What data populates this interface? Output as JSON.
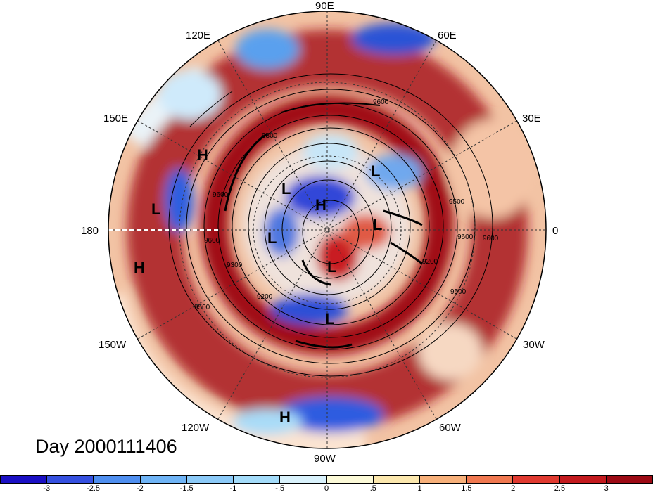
{
  "title": "Day 2000111406",
  "longitude_labels": {
    "top": "90E",
    "upper_left": "120E",
    "upper_right": "60E",
    "mid_left": "150E",
    "mid_right": "30E",
    "left": "180",
    "right": "0",
    "lower_left": "150W",
    "lower_right": "30W",
    "bottom_left": "120W",
    "bottom_right": "60W",
    "bottom": "90W"
  },
  "pressure_systems": [
    "H",
    "L",
    "H",
    "L",
    "L",
    "H",
    "L",
    "L",
    "L",
    "L",
    "H"
  ],
  "contour_labels": [
    "9600",
    "9300",
    "9600",
    "9600",
    "9300",
    "9200",
    "9500",
    "9600",
    "9200",
    "9500",
    "9500",
    "9600"
  ],
  "colorbar": {
    "ticks": [
      "-3",
      "-2.5",
      "-2",
      "-1.5",
      "-1",
      "-.5",
      "0",
      ".5",
      "1",
      "1.5",
      "2",
      "2.5",
      "3"
    ],
    "colors": [
      "#1a0fc4",
      "#3550e0",
      "#4f8ff0",
      "#6fb4f6",
      "#a4dcfa",
      "#d9f2fc",
      "#fcfad8",
      "#fce8ae",
      "#f7b07a",
      "#f07850",
      "#e03a30",
      "#c31a1e",
      "#9c0a14"
    ]
  }
}
